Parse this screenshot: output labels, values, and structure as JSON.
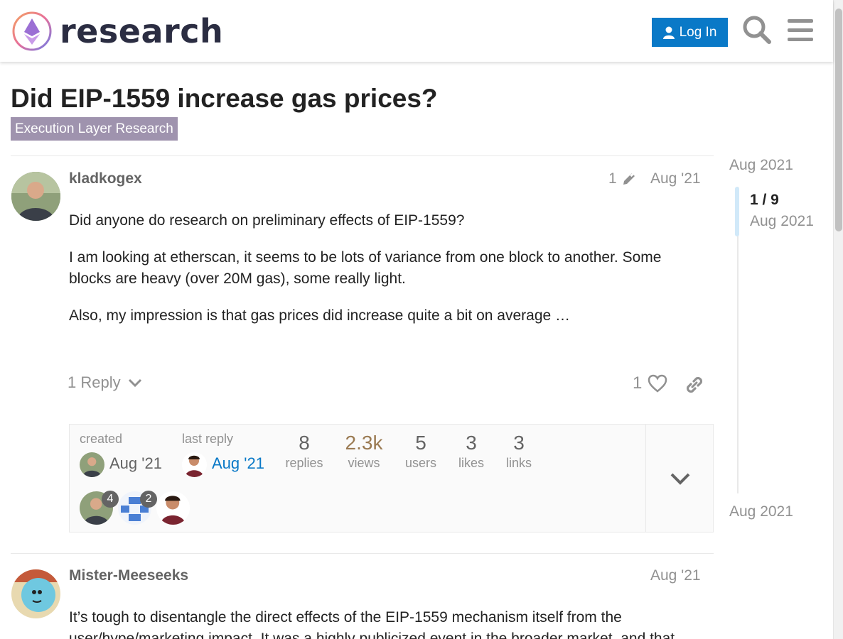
{
  "header": {
    "logo_text": "research",
    "login_label": "Log In"
  },
  "topic": {
    "title": "Did EIP-1559 increase gas prices?",
    "category": "Execution Layer Research",
    "category_color": "#9f93ae"
  },
  "posts": [
    {
      "username": "kladkogex",
      "edit_count": "1",
      "date": "Aug '21",
      "paragraphs": [
        "Did anyone do research on preliminary effects of EIP-1559?",
        "I am looking at etherscan, it seems to be lots of variance from one block to another. Some blocks are heavy (over 20M gas), some really light.",
        "Also, my impression is that gas prices did increase quite a bit on average …"
      ],
      "reply_label": "1 Reply",
      "like_count": "1"
    },
    {
      "username": "Mister-Meeseeks",
      "date": "Aug '21",
      "paragraphs": [
        "It’s tough to disentangle the direct effects of the EIP-1559 mechanism itself from the user/hype/marketing impact. It was a highly publicized event in the broader market, and that"
      ]
    }
  ],
  "topic_map": {
    "created_label": "created",
    "created_date": "Aug '21",
    "last_reply_label": "last reply",
    "last_reply_date": "Aug '21",
    "stats": [
      {
        "num": "8",
        "label": "replies"
      },
      {
        "num": "2.3k",
        "label": "views"
      },
      {
        "num": "5",
        "label": "users"
      },
      {
        "num": "3",
        "label": "likes"
      },
      {
        "num": "3",
        "label": "links"
      }
    ],
    "participant_counts": [
      "4",
      "2"
    ]
  },
  "timeline": {
    "start_date": "Aug 2021",
    "position": "1 / 9",
    "position_date": "Aug 2021",
    "end_date": "Aug 2021"
  },
  "colors": {
    "primary": "#0a79c7",
    "views_highlight": "#9a7a52",
    "link": "#0a79c7"
  }
}
